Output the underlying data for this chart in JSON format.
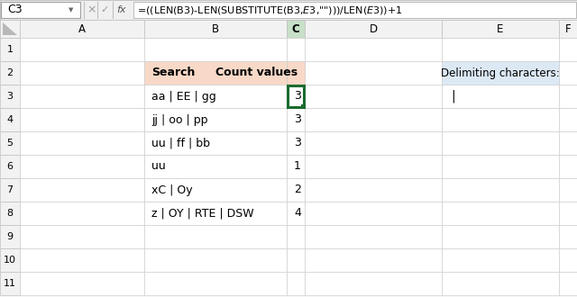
{
  "formula_bar_cell": "C3",
  "formula_bar_text": "=((LEN(B3)-LEN(SUBSTITUTE(B3,$E$3,\"\")))/LEN($E$3))+1",
  "col_labels": [
    "A",
    "B",
    "C",
    "D",
    "E",
    "F"
  ],
  "row_labels": [
    "1",
    "2",
    "3",
    "4",
    "5",
    "6",
    "7",
    "8",
    "9",
    "10",
    "11"
  ],
  "header_row2_B": "Search",
  "header_row2_C": "Count values",
  "search_values": [
    "aa | EE | gg",
    "jj | oo | pp",
    "uu | ff | bb",
    "uu",
    "xC | Oy",
    "z | OY | RTE | DSW"
  ],
  "count_values": [
    "3",
    "3",
    "3",
    "1",
    "2",
    "4"
  ],
  "delim_label": "Delimiting characters:",
  "delim_value": "|",
  "bg_color": "#ffffff",
  "grid_color": "#d0d0d0",
  "header_bg_B": "#f8d9c8",
  "header_bg_C": "#f8d9c8",
  "header_bg_E": "#dce9f5",
  "selected_cell_border": "#1a6b2e",
  "top_bar_bg": "#f0f0f0",
  "sheet_bg": "#f8f8f8",
  "col_header_bg": "#f2f2f2",
  "row_header_bg": "#f2f2f2"
}
